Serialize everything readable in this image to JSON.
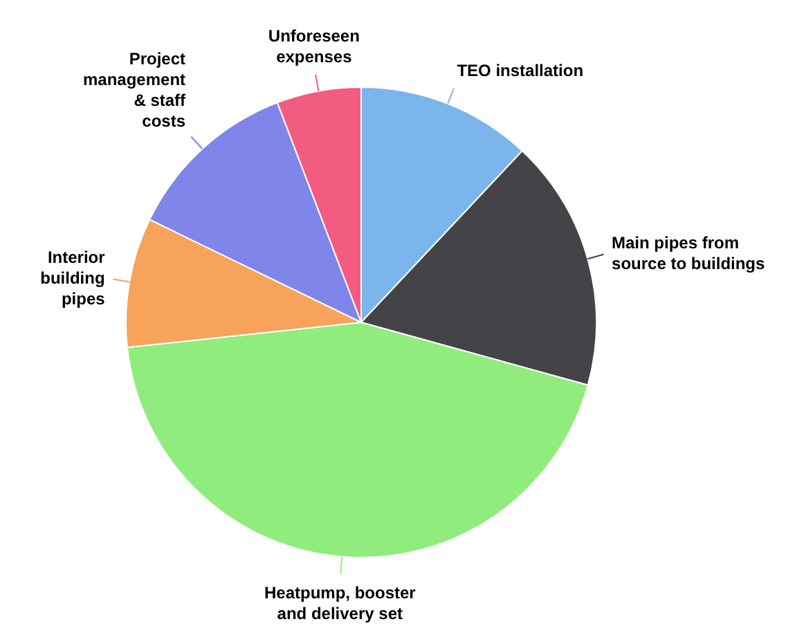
{
  "chart_data": {
    "type": "pie",
    "categories": [
      "TEO installation",
      "Main pipes from source to buildings",
      "Heatpump, booster and delivery set",
      "Interior building pipes",
      "Project management & staff costs",
      "Unforeseen expenses"
    ],
    "values": [
      12,
      17.3,
      44,
      8.9,
      12,
      5.8
    ],
    "colors": [
      "#7cb5ec",
      "#434348",
      "#90ed7d",
      "#f7a35c",
      "#8085e9",
      "#f15c80"
    ]
  }
}
